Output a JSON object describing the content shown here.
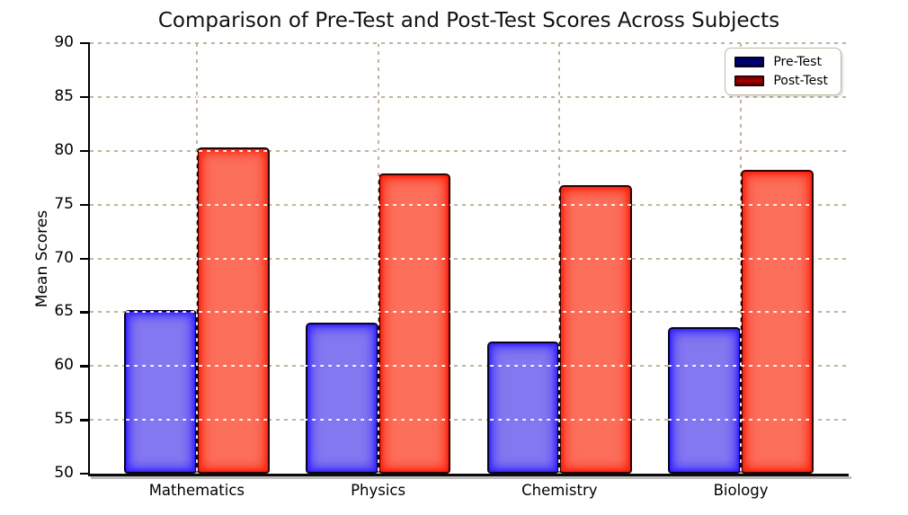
{
  "chart_data": {
    "type": "bar",
    "title": "Comparison of Pre-Test and Post-Test Scores Across Subjects",
    "xlabel": "",
    "ylabel": "Mean Scores",
    "categories": [
      "Mathematics",
      "Physics",
      "Chemistry",
      "Biology"
    ],
    "series": [
      {
        "name": "Pre-Test",
        "values": [
          65.2,
          64.0,
          62.3,
          63.6
        ],
        "bar_fill": "#8478f0",
        "bar_glow": "#2a17ff",
        "bar_edge": "#06051d",
        "legend_swatch": "#00008b"
      },
      {
        "name": "Post-Test",
        "values": [
          80.3,
          77.9,
          76.8,
          78.2
        ],
        "bar_fill": "#fc6f5a",
        "bar_glow": "#fb1500",
        "bar_edge": "#2e0202",
        "legend_swatch": "#bb0000"
      }
    ],
    "ylim": [
      50,
      90
    ],
    "yticks": [
      50,
      55,
      60,
      65,
      70,
      75,
      80,
      85,
      90
    ],
    "grid": true,
    "grid_color": "#c2b49a",
    "grid_style": "dashed",
    "background_color": "#ffffff",
    "legend_position": "upper right"
  }
}
